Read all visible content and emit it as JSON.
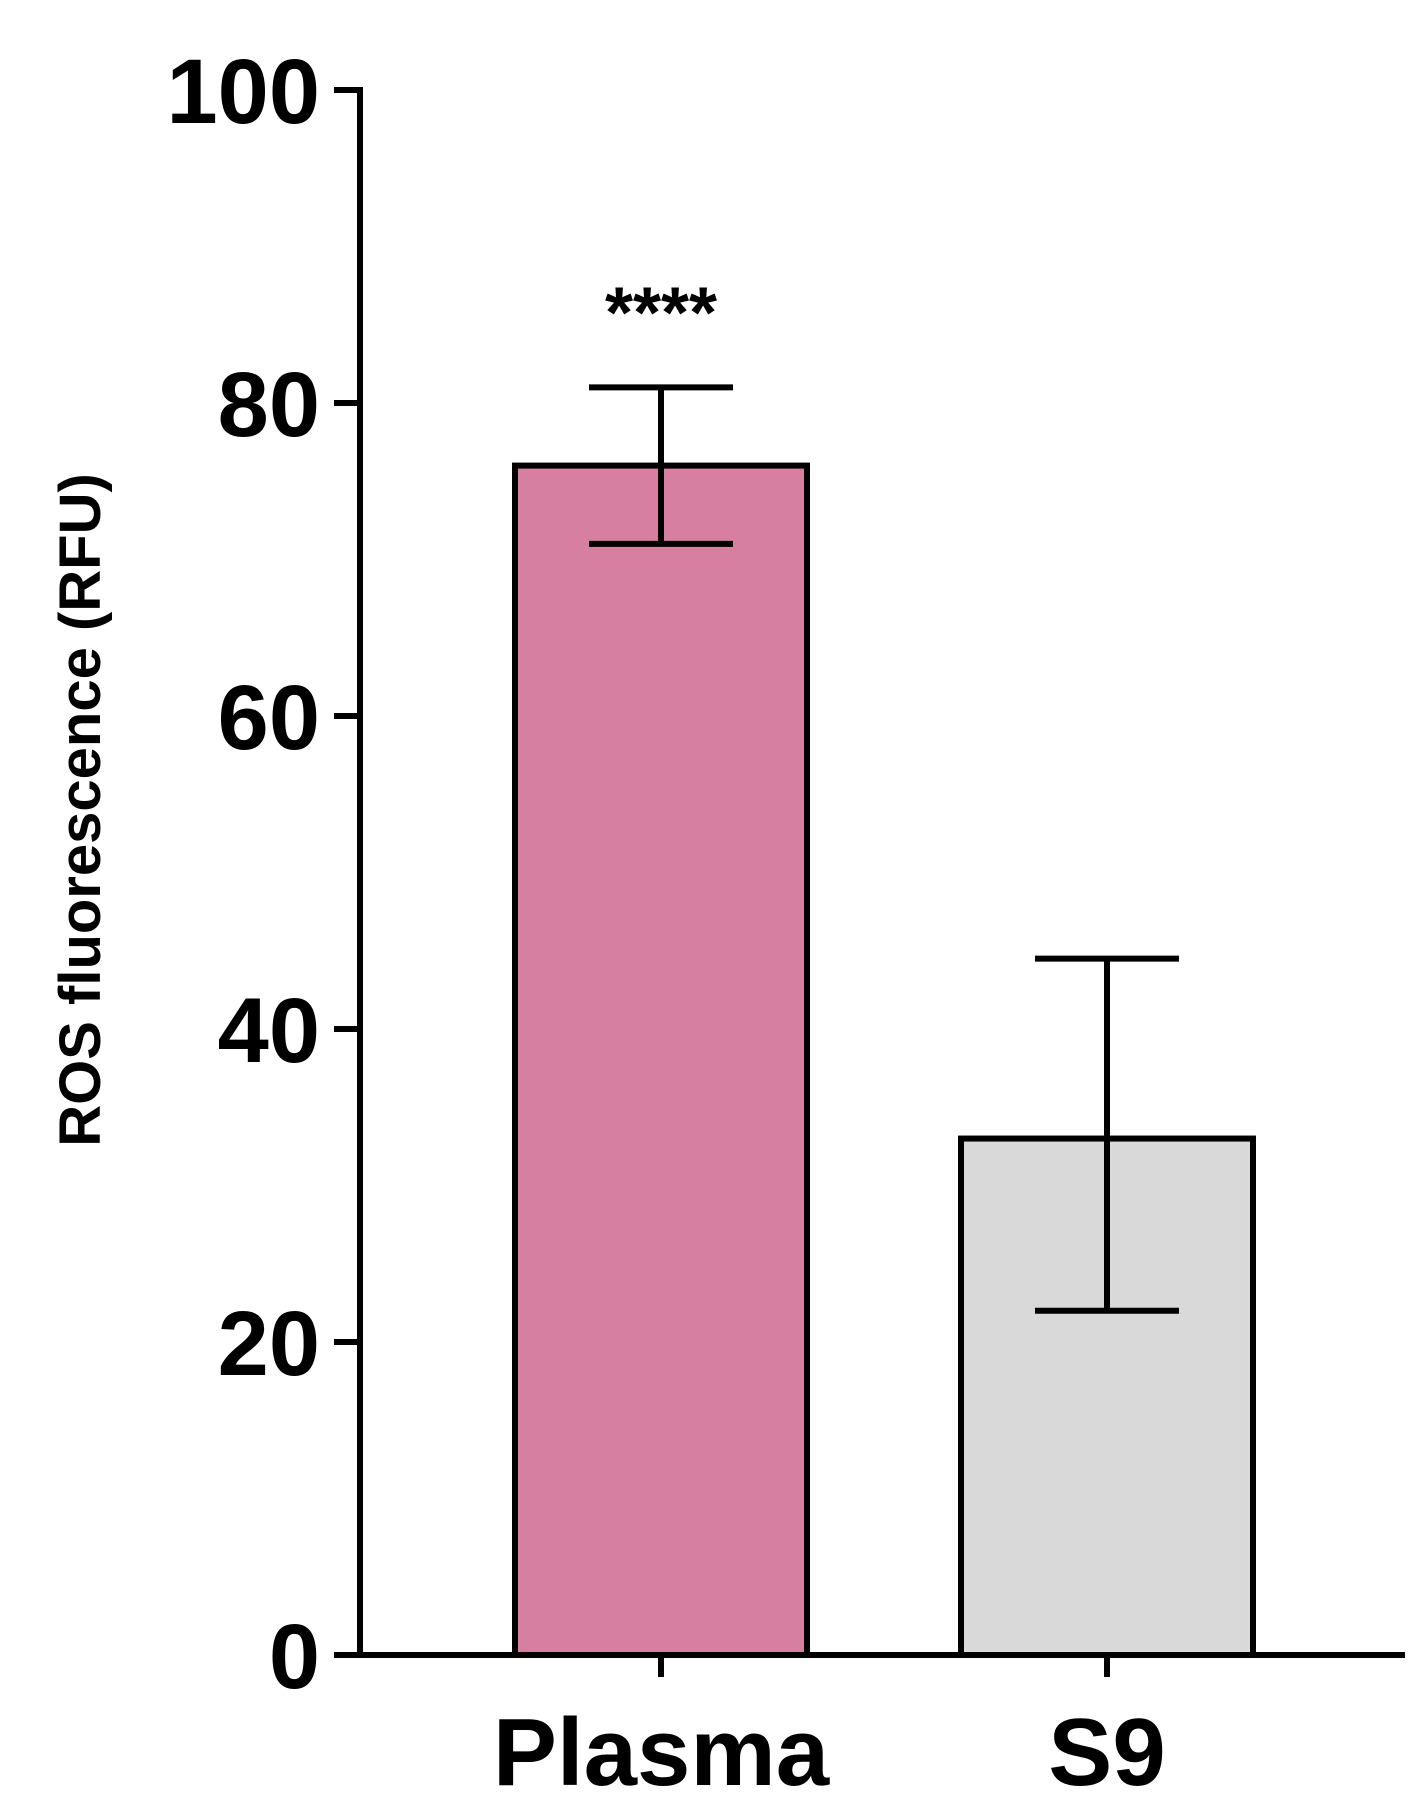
{
  "chart_data": {
    "type": "bar",
    "title": "",
    "xlabel": "",
    "ylabel": "ROS fluorescence (RFU)",
    "ylim": [
      0,
      100
    ],
    "yticks": [
      0,
      20,
      40,
      60,
      80,
      100
    ],
    "grid": false,
    "categories": [
      "Plasma",
      "S9"
    ],
    "values": [
      76,
      33
    ],
    "error_upper": [
      81,
      44.5
    ],
    "error_lower": [
      71,
      22
    ],
    "annotations": [
      "****",
      ""
    ],
    "colors": [
      "#d77fa1",
      "#d9d9d9"
    ],
    "edge_color": "#000000"
  }
}
